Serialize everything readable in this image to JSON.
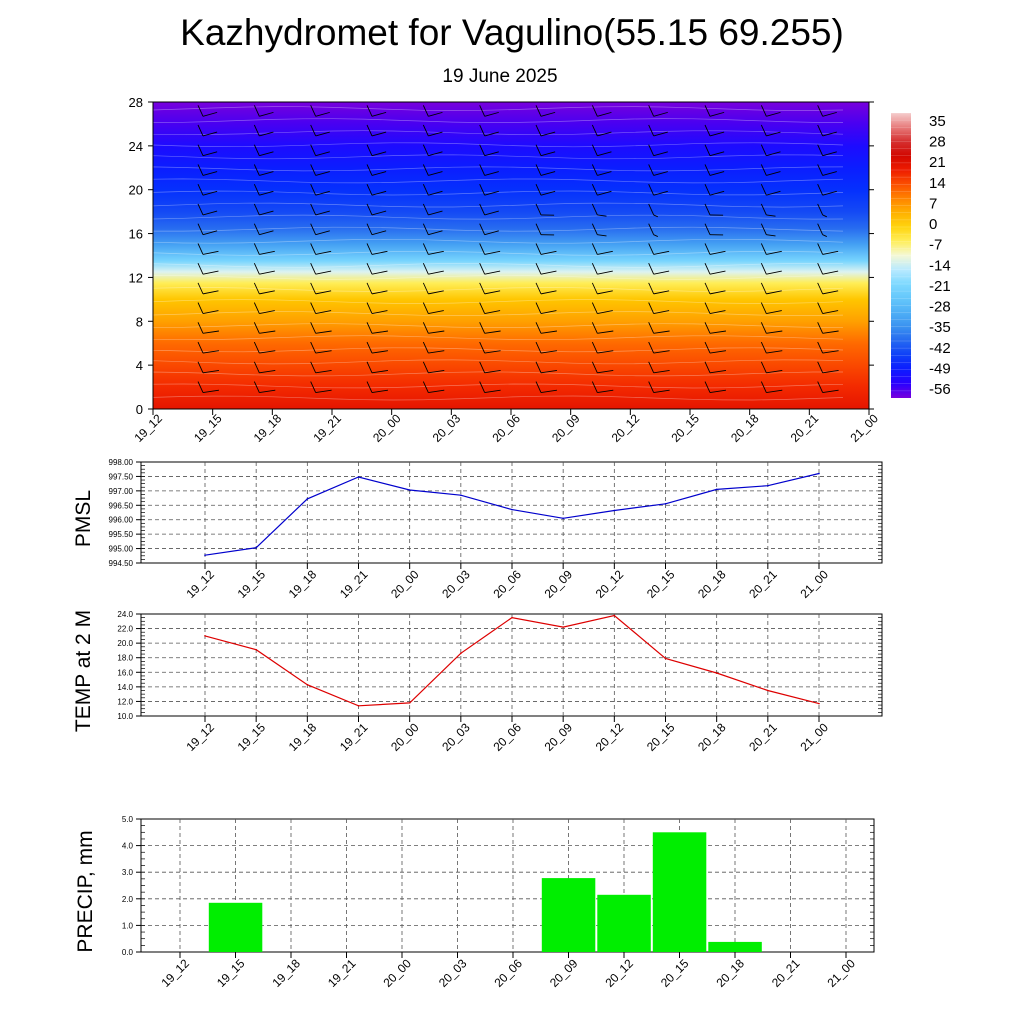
{
  "title": "Kazhydromet for Vagulino(55.15 69.255)",
  "subtitle": "19 June 2025",
  "colors": {
    "pmsl_line": "#0000cc",
    "temp_line": "#dd0000",
    "precip_bar": "#00ee00",
    "grid": "#555555"
  },
  "chart_data": [
    {
      "type": "heatmap",
      "title": "",
      "x": [
        "19_12",
        "19_15",
        "19_18",
        "19_21",
        "20_00",
        "20_03",
        "20_06",
        "20_09",
        "20_12",
        "20_15",
        "20_18",
        "20_21",
        "21_00"
      ],
      "ylim": [
        0,
        28
      ],
      "yticks": [
        0,
        4,
        8,
        12,
        16,
        20,
        24,
        28
      ],
      "colorbar_labels": [
        "35",
        "28",
        "21",
        "14",
        "7",
        "0",
        "-7",
        "-14",
        "-21",
        "-28",
        "-35",
        "-42",
        "-49",
        "-56"
      ],
      "colorbar_range": [
        -60,
        38
      ],
      "profile": [
        [
          0,
          20
        ],
        [
          2,
          17
        ],
        [
          4,
          14
        ],
        [
          6,
          11
        ],
        [
          8,
          6
        ],
        [
          10,
          1
        ],
        [
          11.5,
          -6
        ],
        [
          12.5,
          -13
        ],
        [
          13.5,
          -22
        ],
        [
          15,
          -33
        ],
        [
          16.5,
          -40
        ],
        [
          18,
          -44
        ],
        [
          20,
          -47
        ],
        [
          22,
          -50
        ],
        [
          24,
          -53
        ],
        [
          26,
          -57
        ],
        [
          28,
          -60
        ]
      ],
      "wind_barbs": true
    },
    {
      "type": "line",
      "ylabel": "PMSL",
      "ylim": [
        994.5,
        998.0
      ],
      "yticks": [
        "994.50",
        "995.00",
        "995.50",
        "996.00",
        "996.50",
        "997.00",
        "997.50",
        "998.00"
      ],
      "categories": [
        "19_12",
        "19_15",
        "19_18",
        "19_21",
        "20_00",
        "20_03",
        "20_06",
        "20_09",
        "20_12",
        "20_15",
        "20_18",
        "20_21",
        "21_00"
      ],
      "values": [
        994.77,
        995.03,
        996.72,
        997.48,
        997.03,
        996.85,
        996.35,
        996.05,
        996.32,
        996.55,
        997.05,
        997.18,
        997.6
      ]
    },
    {
      "type": "line",
      "ylabel": "TEMP at 2 M",
      "ylim": [
        10.0,
        24.0
      ],
      "yticks": [
        "10.0",
        "11.0",
        "12.0",
        "13.0",
        "14.0",
        "15.0",
        "16.0",
        "17.0",
        "18.0",
        "19.0",
        "20.0",
        "21.0",
        "22.0",
        "23.0",
        "24.0"
      ],
      "tick_labels": [
        "12.0",
        "14.0",
        "16.0",
        "18.0",
        "20.0",
        "22.0",
        "24.0",
        "10.0"
      ],
      "categories": [
        "19_12",
        "19_15",
        "19_18",
        "19_21",
        "20_00",
        "20_03",
        "20_06",
        "20_09",
        "20_12",
        "20_15",
        "20_18",
        "20_21",
        "21_00"
      ],
      "values": [
        21.0,
        19.1,
        14.3,
        11.4,
        11.8,
        18.6,
        23.5,
        22.2,
        23.8,
        17.9,
        15.9,
        13.5,
        11.7
      ]
    },
    {
      "type": "bar",
      "ylabel": "PRECIP, mm",
      "ylim": [
        0.0,
        5.0
      ],
      "yticks": [
        "0.0",
        "1.0",
        "2.0",
        "3.0",
        "4.0",
        "5.0"
      ],
      "categories": [
        "19_12",
        "19_15",
        "19_18",
        "19_21",
        "20_00",
        "20_03",
        "20_06",
        "20_09",
        "20_12",
        "20_15",
        "20_18",
        "20_21",
        "21_00"
      ],
      "values": [
        0,
        1.85,
        0,
        0,
        0,
        0,
        0,
        2.78,
        2.15,
        4.5,
        0.38,
        0,
        0
      ]
    }
  ]
}
